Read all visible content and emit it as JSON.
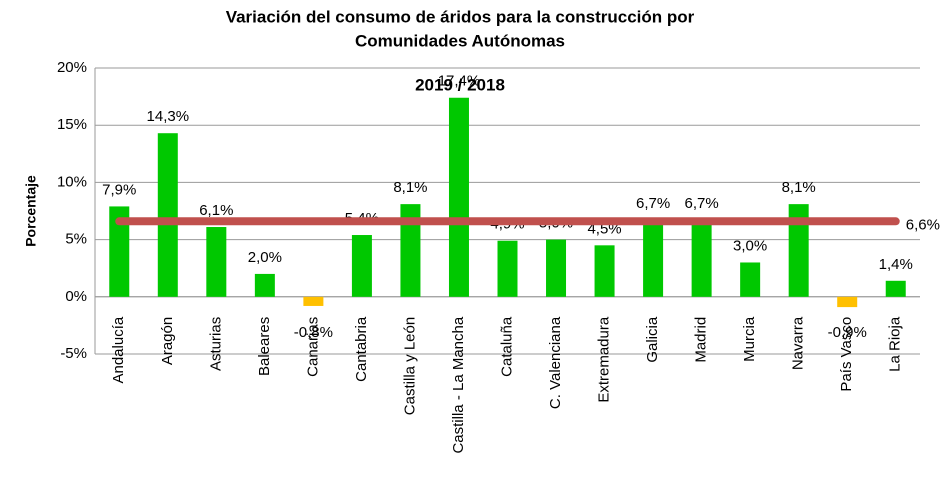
{
  "chart_data": {
    "type": "bar",
    "title": "Variación del consumo de áridos para la construcción por",
    "title_line2": "Comunidades Autónomas",
    "subtitle": "2019 / 2018",
    "y_label": "Porcentaje",
    "categories": [
      "Andalucía",
      "Aragón",
      "Asturias",
      "Baleares",
      "Canarias",
      "Cantabria",
      "Castilla y León",
      "Castilla - La Mancha",
      "Cataluña",
      "C. Valenciana",
      "Extremadura",
      "Galicia",
      "Madrid",
      "Murcia",
      "Navarra",
      "País Vasco",
      "La Rioja"
    ],
    "values": [
      7.9,
      14.3,
      6.1,
      2.0,
      -0.8,
      5.4,
      8.1,
      17.4,
      4.9,
      5.0,
      4.5,
      6.7,
      6.7,
      3.0,
      8.1,
      -0.9,
      1.4
    ],
    "value_labels": [
      "7,9%",
      "14,3%",
      "6,1%",
      "2,0%",
      "-0,8%",
      "5,4%",
      "8,1%",
      "17,4%",
      "4,9%",
      "5,0%",
      "4,5%",
      "6,7%",
      "6,7%",
      "3,0%",
      "8,1%",
      "-0,9%",
      "1,4%"
    ],
    "color": "#00c800",
    "negative_color": "#ffc000",
    "average": {
      "value": 6.6,
      "label": "6,6%",
      "color": "#c0504d"
    },
    "ylim": [
      -5,
      20
    ],
    "yticks": [
      {
        "value": -5,
        "label": "-5%"
      },
      {
        "value": 0,
        "label": "0%"
      },
      {
        "value": 5,
        "label": "5%"
      },
      {
        "value": 10,
        "label": "10%"
      },
      {
        "value": 15,
        "label": "15%"
      },
      {
        "value": 20,
        "label": "20%"
      }
    ],
    "grid": true
  }
}
